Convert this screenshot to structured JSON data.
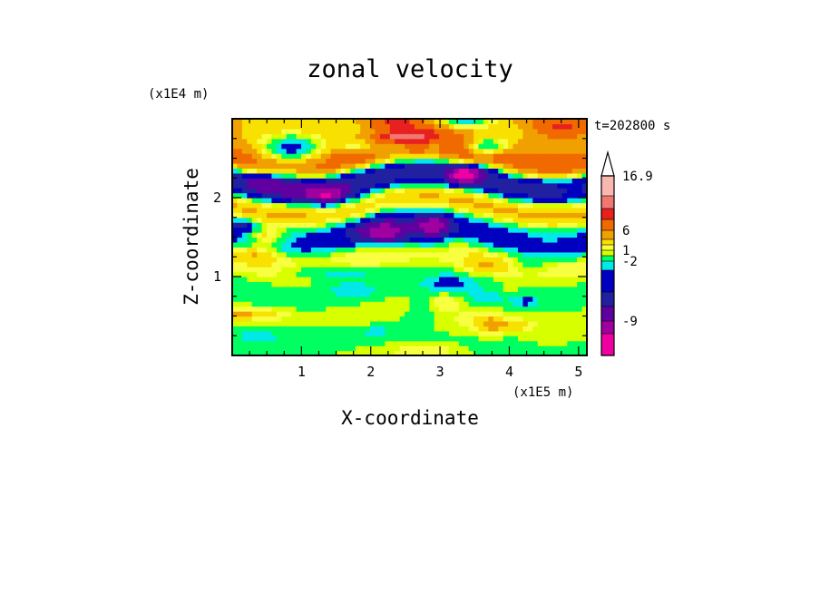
{
  "chart_data": {
    "type": "heatmap",
    "title": "zonal velocity",
    "xlabel": "X-coordinate",
    "ylabel": "Z-coordinate",
    "x_unit": "(x1E5 m)",
    "y_unit": "(x1E4 m)",
    "time_label": "t=202800 s",
    "xlim": [
      0,
      5.12
    ],
    "ylim": [
      0,
      3
    ],
    "x_ticks": [
      "1",
      "2",
      "3",
      "4",
      "5"
    ],
    "y_ticks": [
      "1",
      "2"
    ],
    "colorbar": {
      "levels": [
        "16.9",
        "6",
        "1",
        "-2",
        "-9"
      ],
      "colors": [
        "#f8b8b0",
        "#f07870",
        "#e82020",
        "#f06a00",
        "#f0a000",
        "#f8e000",
        "#f8ff40",
        "#d8ff00",
        "#00ff60",
        "#00e8e8",
        "#0000c0",
        "#2020a0",
        "#6000a0",
        "#a000a0",
        "#f000a0"
      ]
    },
    "bands": [
      {
        "z": 2.8,
        "value": 4
      },
      {
        "z": 2.55,
        "value": 8
      },
      {
        "z": 2.2,
        "value": -6
      },
      {
        "z": 1.9,
        "value": 5
      },
      {
        "z": 1.6,
        "value": -3
      },
      {
        "z": 1.2,
        "value": 2
      },
      {
        "z": 0.9,
        "value": 0
      },
      {
        "z": 0.5,
        "value": 1
      },
      {
        "z": 0.15,
        "value": 0.5
      }
    ]
  }
}
